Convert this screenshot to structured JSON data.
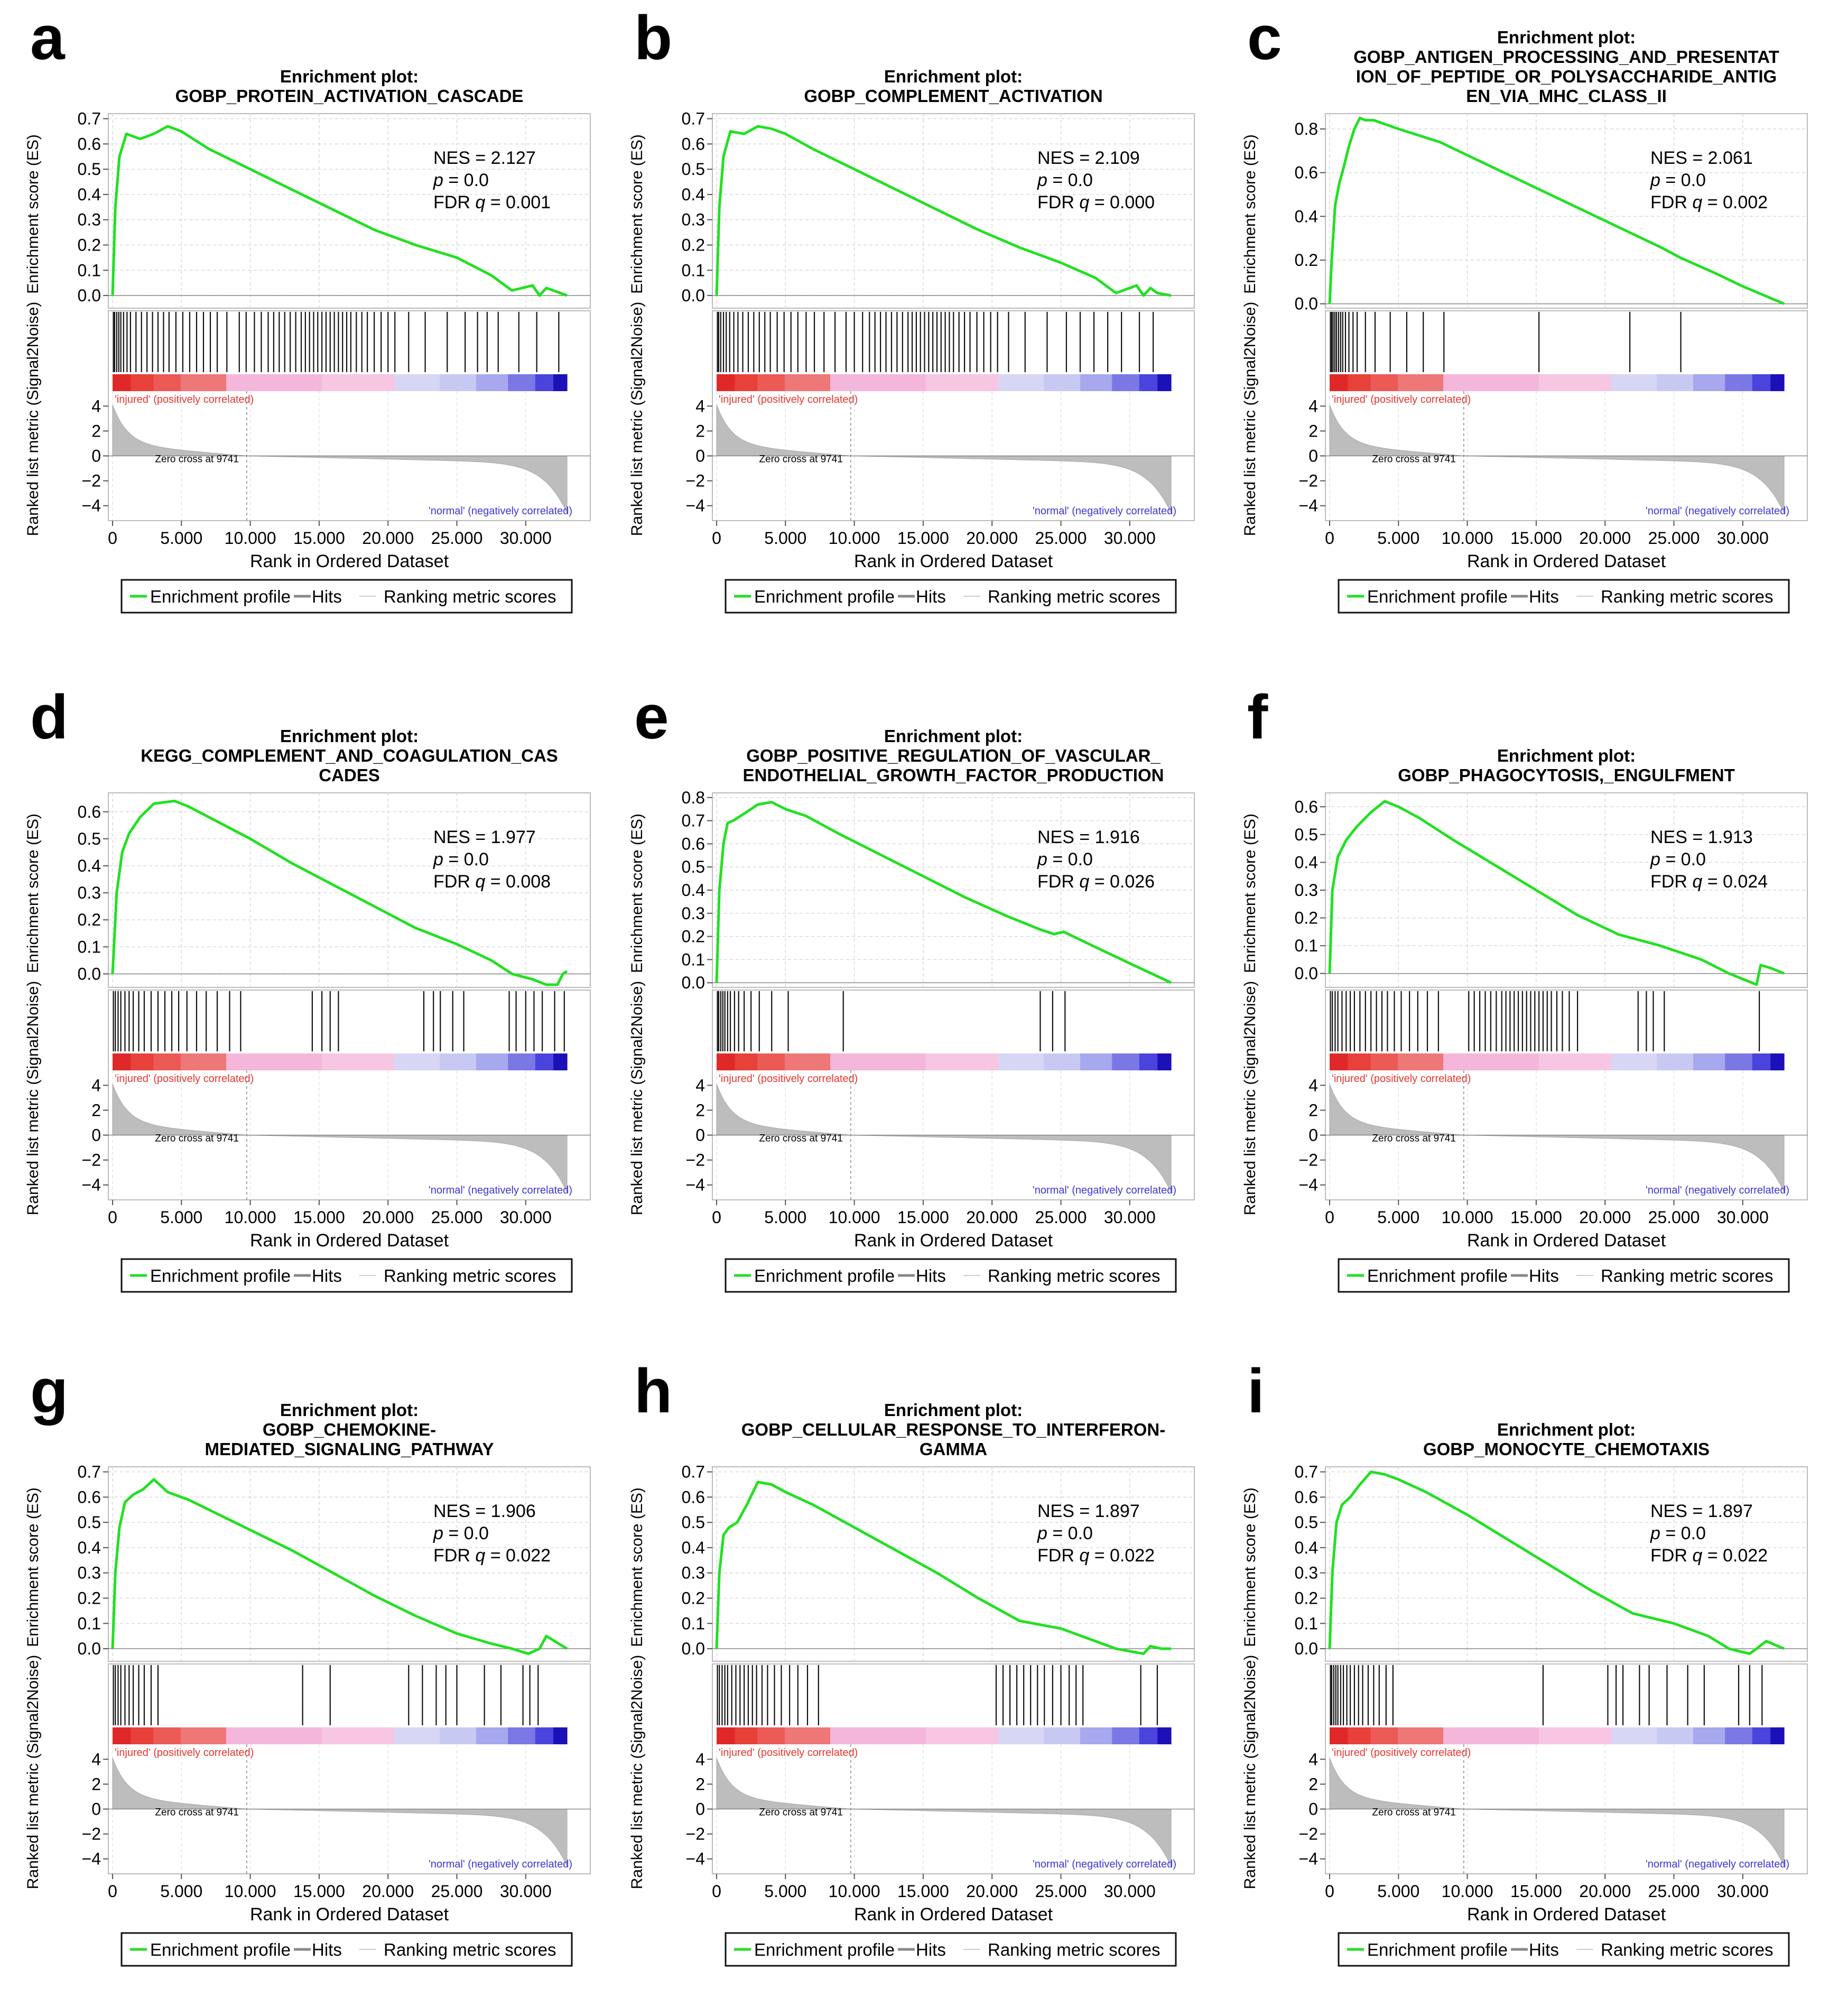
{
  "figure": {
    "common": {
      "plot_heading": "Enrichment plot:",
      "es_ylabel": "Enrichment score (ES)",
      "rank_ylabel": "Ranked list metric (Signal2Noise)",
      "xlabel": "Rank in Ordered Dataset",
      "x_ticks": [
        "0",
        "5.000",
        "10.000",
        "15.000",
        "20.000",
        "25.000",
        "30.000"
      ],
      "rank_ticks": [
        "4",
        "2",
        "0",
        "−2",
        "−4"
      ],
      "pos_label": "'injured' (positively correlated)",
      "neg_label": "'normal' (negatively correlated)",
      "zero_cross_label": "Zero cross at 9741",
      "legend": {
        "profile": "Enrichment profile",
        "hits": "Hits",
        "ranking": "Ranking metric scores"
      },
      "nes_label": "NES = ",
      "p_label": "p",
      "p_suffix": " = 0.0",
      "fdr_label": "FDR ",
      "q_label": "q",
      "colors": {
        "curve": "#22e022",
        "positive": "#e8352f",
        "pink": "#f4b6da",
        "lavender": "#cfd0f3",
        "negative": "#3b35d8",
        "metric": "#bdbdbd"
      }
    },
    "panels": [
      {
        "letter": "a",
        "title": [
          "GOBP_PROTEIN_ACTIVATION_CASCADE"
        ],
        "nes": "2.127",
        "fdr": " = 0.001"
      },
      {
        "letter": "b",
        "title": [
          "GOBP_COMPLEMENT_ACTIVATION"
        ],
        "nes": "2.109",
        "fdr": " = 0.000"
      },
      {
        "letter": "c",
        "title": [
          "GOBP_ANTIGEN_PROCESSING_AND_PRESENTAT",
          "ION_OF_PEPTIDE_OR_POLYSACCHARIDE_ANTIG",
          "EN_VIA_MHC_CLASS_II"
        ],
        "nes": "2.061",
        "fdr": " = 0.002"
      },
      {
        "letter": "d",
        "title": [
          "KEGG_COMPLEMENT_AND_COAGULATION_CAS",
          "CADES"
        ],
        "nes": "1.977",
        "fdr": " = 0.008"
      },
      {
        "letter": "e",
        "title": [
          "GOBP_POSITIVE_REGULATION_OF_VASCULAR_",
          "ENDOTHELIAL_GROWTH_FACTOR_PRODUCTION"
        ],
        "nes": "1.916",
        "fdr": " = 0.026"
      },
      {
        "letter": "f",
        "title": [
          "GOBP_PHAGOCYTOSIS,_ENGULFMENT"
        ],
        "nes": "1.913",
        "fdr": " = 0.024"
      },
      {
        "letter": "g",
        "title": [
          "GOBP_CHEMOKINE-",
          "MEDIATED_SIGNALING_PATHWAY"
        ],
        "nes": "1.906",
        "fdr": " = 0.022"
      },
      {
        "letter": "h",
        "title": [
          "GOBP_CELLULAR_RESPONSE_TO_INTERFERON-",
          "GAMMA"
        ],
        "nes": "1.897",
        "fdr": " = 0.022"
      },
      {
        "letter": "i",
        "title": [
          "GOBP_MONOCYTE_CHEMOTAXIS"
        ],
        "nes": "1.897",
        "fdr": " = 0.022"
      }
    ]
  },
  "chart_data": [
    {
      "type": "line",
      "panel": "a",
      "title": "Enrichment plot: GOBP_PROTEIN_ACTIVATION_CASCADE",
      "xlabel": "Rank in Ordered Dataset",
      "ylabel": "Enrichment score (ES)",
      "xlim": [
        0,
        33000
      ],
      "ylim": [
        -0.05,
        0.72
      ],
      "y_ticks": [
        "0.7",
        "0.6",
        "0.5",
        "0.4",
        "0.3",
        "0.2",
        "0.1",
        "0.0"
      ],
      "x": [
        0,
        200,
        500,
        1000,
        2000,
        3000,
        4000,
        5000,
        7000,
        10000,
        13000,
        16000,
        19000,
        22000,
        25000,
        27500,
        29000,
        30500,
        31000,
        31500,
        32000,
        33000
      ],
      "es": [
        0,
        0.35,
        0.55,
        0.64,
        0.62,
        0.64,
        0.67,
        0.65,
        0.58,
        0.5,
        0.42,
        0.34,
        0.26,
        0.2,
        0.15,
        0.08,
        0.02,
        0.04,
        0.0,
        0.03,
        0.02,
        0.0
      ],
      "hits": [
        60,
        150,
        300,
        450,
        600,
        800,
        1050,
        1300,
        1700,
        2100,
        2500,
        2900,
        3300,
        3700,
        4100,
        4600,
        5100,
        5600,
        6100,
        6600,
        7100,
        7600,
        8300,
        9200,
        9700,
        10300,
        10800,
        11300,
        11700,
        12100,
        12500,
        12900,
        13300,
        13700,
        14000,
        14300,
        14600,
        14900,
        15200,
        15500,
        15800,
        16100,
        16400,
        16700,
        17000,
        17300,
        17700,
        18100,
        18500,
        19000,
        19500,
        20000,
        20500,
        21500,
        22700,
        24300,
        25600,
        26500,
        27200,
        28000,
        29500,
        30800,
        32400
      ],
      "nes": 2.127,
      "p": 0.0,
      "fdr_q": 0.001,
      "zero_cross": 9741
    },
    {
      "type": "line",
      "panel": "b",
      "title": "Enrichment plot: GOBP_COMPLEMENT_ACTIVATION",
      "xlabel": "Rank in Ordered Dataset",
      "ylabel": "Enrichment score (ES)",
      "xlim": [
        0,
        33000
      ],
      "ylim": [
        -0.05,
        0.72
      ],
      "y_ticks": [
        "0.7",
        "0.6",
        "0.5",
        "0.4",
        "0.3",
        "0.2",
        "0.1",
        "0.0"
      ],
      "x": [
        0,
        200,
        500,
        1000,
        2000,
        3000,
        4000,
        5000,
        7000,
        10000,
        13000,
        16000,
        19000,
        22000,
        25000,
        27500,
        29000,
        30500,
        31000,
        31500,
        32000,
        33000
      ],
      "es": [
        0,
        0.35,
        0.55,
        0.65,
        0.64,
        0.67,
        0.66,
        0.64,
        0.58,
        0.5,
        0.42,
        0.34,
        0.26,
        0.19,
        0.13,
        0.07,
        0.01,
        0.04,
        0.0,
        0.03,
        0.01,
        0.0
      ],
      "hits": [
        60,
        150,
        300,
        500,
        700,
        950,
        1250,
        1550,
        1900,
        2300,
        2700,
        3100,
        3500,
        3900,
        4400,
        4900,
        5400,
        5900,
        6500,
        7100,
        7800,
        8600,
        9400,
        10000,
        10600,
        11100,
        11500,
        11900,
        12300,
        12700,
        13100,
        13500,
        13900,
        14200,
        14500,
        14800,
        15100,
        15400,
        15700,
        16000,
        16300,
        16600,
        16900,
        17200,
        17600,
        18000,
        18400,
        18900,
        19400,
        19900,
        20400,
        21200,
        22400,
        24000,
        25400,
        26400,
        27400,
        28400,
        29400,
        30700,
        31700
      ],
      "nes": 2.109,
      "p": 0.0,
      "fdr_q": 0.0,
      "zero_cross": 9741
    },
    {
      "type": "line",
      "panel": "c",
      "title": "Enrichment plot: GOBP_ANTIGEN_PROCESSING_AND_PRESENTATION_OF_PEPTIDE_OR_POLYSACCHARIDE_ANTIGEN_VIA_MHC_CLASS_II",
      "xlabel": "Rank in Ordered Dataset",
      "ylabel": "Enrichment score (ES)",
      "xlim": [
        0,
        33000
      ],
      "ylim": [
        -0.02,
        0.87
      ],
      "y_ticks": [
        "0.8",
        "0.6",
        "0.4",
        "0.2",
        "0.0"
      ],
      "x": [
        0,
        150,
        400,
        700,
        1000,
        1400,
        1800,
        2200,
        2600,
        3200,
        5000,
        8000,
        12000,
        16000,
        20000,
        24000,
        25500,
        28000,
        30000,
        33000
      ],
      "es": [
        0,
        0.2,
        0.45,
        0.55,
        0.62,
        0.72,
        0.8,
        0.85,
        0.84,
        0.84,
        0.8,
        0.74,
        0.62,
        0.5,
        0.38,
        0.26,
        0.21,
        0.14,
        0.08,
        0.0
      ],
      "hits": [
        60,
        150,
        250,
        380,
        500,
        650,
        800,
        950,
        1150,
        1400,
        1700,
        2000,
        2600,
        3300,
        4400,
        5600,
        6800,
        8300,
        15200,
        21800,
        25500
      ],
      "nes": 2.061,
      "p": 0.0,
      "fdr_q": 0.002,
      "zero_cross": 9741
    },
    {
      "type": "line",
      "panel": "d",
      "title": "Enrichment plot: KEGG_COMPLEMENT_AND_COAGULATION_CASCADES",
      "xlabel": "Rank in Ordered Dataset",
      "ylabel": "Enrichment score (ES)",
      "xlim": [
        0,
        33000
      ],
      "ylim": [
        -0.05,
        0.67
      ],
      "y_ticks": [
        "0.6",
        "0.5",
        "0.4",
        "0.3",
        "0.2",
        "0.1",
        "0.0"
      ],
      "x": [
        0,
        300,
        700,
        1200,
        2000,
        3000,
        4500,
        5500,
        7000,
        10000,
        13000,
        16000,
        19000,
        22000,
        25000,
        27500,
        29000,
        30500,
        31500,
        32300,
        32700,
        33000
      ],
      "es": [
        0,
        0.3,
        0.45,
        0.52,
        0.58,
        0.63,
        0.64,
        0.62,
        0.58,
        0.5,
        0.41,
        0.33,
        0.25,
        0.17,
        0.11,
        0.05,
        0.0,
        -0.02,
        -0.04,
        -0.04,
        0.0,
        0.01
      ],
      "hits": [
        60,
        200,
        400,
        600,
        900,
        1200,
        1500,
        1900,
        2300,
        2800,
        3300,
        3800,
        4300,
        4800,
        5400,
        6100,
        6800,
        7600,
        8500,
        9300,
        14500,
        15200,
        15800,
        16400,
        22600,
        23300,
        23800,
        24700,
        25500,
        28800,
        29300,
        30000,
        30600,
        31200,
        32100,
        32800
      ],
      "nes": 1.977,
      "p": 0.0,
      "fdr_q": 0.008,
      "zero_cross": 9741
    },
    {
      "type": "line",
      "panel": "e",
      "title": "Enrichment plot: GOBP_POSITIVE_REGULATION_OF_VASCULAR_ENDOTHELIAL_GROWTH_FACTOR_PRODUCTION",
      "xlabel": "Rank in Ordered Dataset",
      "ylabel": "Enrichment score (ES)",
      "xlim": [
        0,
        33000
      ],
      "ylim": [
        -0.02,
        0.82
      ],
      "y_ticks": [
        "0.8",
        "0.7",
        "0.6",
        "0.5",
        "0.4",
        "0.3",
        "0.2",
        "0.1",
        "0.0"
      ],
      "x": [
        0,
        200,
        500,
        800,
        1200,
        2000,
        3000,
        4000,
        5000,
        6500,
        9000,
        12000,
        15000,
        18000,
        21000,
        23500,
        24500,
        25200,
        28000,
        30500,
        33000
      ],
      "es": [
        0,
        0.4,
        0.6,
        0.69,
        0.7,
        0.73,
        0.77,
        0.78,
        0.75,
        0.72,
        0.64,
        0.55,
        0.46,
        0.37,
        0.29,
        0.23,
        0.21,
        0.22,
        0.14,
        0.07,
        0.0
      ],
      "hits": [
        60,
        150,
        300,
        450,
        600,
        800,
        1000,
        1300,
        1600,
        2000,
        2500,
        3100,
        4000,
        5200,
        9200,
        23500,
        24400,
        25300
      ],
      "nes": 1.916,
      "p": 0.0,
      "fdr_q": 0.026,
      "zero_cross": 9741
    },
    {
      "type": "line",
      "panel": "f",
      "title": "Enrichment plot: GOBP_PHAGOCYTOSIS,_ENGULFMENT",
      "xlabel": "Rank in Ordered Dataset",
      "ylabel": "Enrichment score (ES)",
      "xlim": [
        0,
        33000
      ],
      "ylim": [
        -0.05,
        0.65
      ],
      "y_ticks": [
        "0.6",
        "0.5",
        "0.4",
        "0.3",
        "0.2",
        "0.1",
        "0.0"
      ],
      "x": [
        0,
        200,
        600,
        1200,
        2000,
        3000,
        4000,
        5000,
        6500,
        9000,
        12000,
        15000,
        18000,
        21000,
        24000,
        27000,
        29000,
        31000,
        31300,
        32000,
        33000
      ],
      "es": [
        0,
        0.3,
        0.42,
        0.48,
        0.53,
        0.58,
        0.62,
        0.6,
        0.56,
        0.48,
        0.39,
        0.3,
        0.21,
        0.14,
        0.1,
        0.05,
        0.0,
        -0.04,
        0.03,
        0.02,
        0.0
      ],
      "hits": [
        60,
        200,
        400,
        600,
        900,
        1200,
        1500,
        1800,
        2200,
        2600,
        3000,
        3400,
        3800,
        4200,
        4700,
        5200,
        5800,
        6400,
        7100,
        7900,
        10100,
        10500,
        10900,
        11300,
        11700,
        12100,
        12500,
        12800,
        13100,
        13400,
        13700,
        14000,
        14300,
        14600,
        14900,
        15200,
        15500,
        15800,
        16100,
        16500,
        16900,
        17400,
        18000,
        22400,
        23000,
        23500,
        24300,
        31200
      ],
      "nes": 1.913,
      "p": 0.0,
      "fdr_q": 0.024,
      "zero_cross": 9741
    },
    {
      "type": "line",
      "panel": "g",
      "title": "Enrichment plot: GOBP_CHEMOKINE-MEDIATED_SIGNALING_PATHWAY",
      "xlabel": "Rank in Ordered Dataset",
      "ylabel": "Enrichment score (ES)",
      "xlim": [
        0,
        33000
      ],
      "ylim": [
        -0.05,
        0.72
      ],
      "y_ticks": [
        "0.7",
        "0.6",
        "0.5",
        "0.4",
        "0.3",
        "0.2",
        "0.1",
        "0.0"
      ],
      "x": [
        0,
        200,
        500,
        900,
        1500,
        2200,
        3000,
        4000,
        5500,
        7000,
        10000,
        13000,
        16000,
        19000,
        22000,
        25000,
        27500,
        29000,
        30200,
        31000,
        31500,
        33000
      ],
      "es": [
        0,
        0.3,
        0.48,
        0.58,
        0.61,
        0.63,
        0.67,
        0.62,
        0.59,
        0.55,
        0.47,
        0.39,
        0.3,
        0.21,
        0.13,
        0.06,
        0.02,
        0.0,
        -0.02,
        0.0,
        0.05,
        0.0
      ],
      "hits": [
        60,
        200,
        400,
        600,
        900,
        1200,
        1500,
        1900,
        2300,
        2800,
        3300,
        13800,
        15800,
        21500,
        22500,
        23500,
        24200,
        25000,
        27000,
        28200,
        29800,
        30300,
        30900
      ],
      "nes": 1.906,
      "p": 0.0,
      "fdr_q": 0.022,
      "zero_cross": 9741
    },
    {
      "type": "line",
      "panel": "h",
      "title": "Enrichment plot: GOBP_CELLULAR_RESPONSE_TO_INTERFERON-GAMMA",
      "xlabel": "Rank in Ordered Dataset",
      "ylabel": "Enrichment score (ES)",
      "xlim": [
        0,
        33000
      ],
      "ylim": [
        -0.05,
        0.72
      ],
      "y_ticks": [
        "0.7",
        "0.6",
        "0.5",
        "0.4",
        "0.3",
        "0.2",
        "0.1",
        "0.0"
      ],
      "x": [
        0,
        200,
        500,
        900,
        1500,
        2200,
        3000,
        4000,
        5000,
        7000,
        10000,
        13000,
        16000,
        19000,
        22000,
        25000,
        27000,
        29000,
        31000,
        31500,
        32300,
        33000
      ],
      "es": [
        0,
        0.3,
        0.45,
        0.48,
        0.5,
        0.57,
        0.66,
        0.65,
        0.62,
        0.57,
        0.48,
        0.39,
        0.3,
        0.2,
        0.11,
        0.08,
        0.04,
        0.0,
        -0.02,
        0.01,
        0.0,
        0.0
      ],
      "hits": [
        60,
        200,
        400,
        600,
        800,
        1100,
        1400,
        1700,
        2000,
        2300,
        2600,
        2900,
        3300,
        3700,
        4200,
        4700,
        5300,
        5900,
        6600,
        7400,
        20300,
        20800,
        21300,
        21800,
        22300,
        22800,
        23300,
        23800,
        24400,
        25000,
        25600,
        26100,
        26600,
        30800,
        32000
      ],
      "nes": 1.897,
      "p": 0.0,
      "fdr_q": 0.022,
      "zero_cross": 9741
    },
    {
      "type": "line",
      "panel": "i",
      "title": "Enrichment plot: GOBP_MONOCYTE_CHEMOTAXIS",
      "xlabel": "Rank in Ordered Dataset",
      "ylabel": "Enrichment score (ES)",
      "xlim": [
        0,
        33000
      ],
      "ylim": [
        -0.05,
        0.72
      ],
      "y_ticks": [
        "0.7",
        "0.6",
        "0.5",
        "0.4",
        "0.3",
        "0.2",
        "0.1",
        "0.0"
      ],
      "x": [
        0,
        200,
        500,
        900,
        1500,
        2200,
        3000,
        4000,
        5000,
        7000,
        10000,
        13000,
        16000,
        19000,
        22000,
        25000,
        27500,
        29000,
        30500,
        31000,
        31700,
        33000
      ],
      "es": [
        0,
        0.3,
        0.5,
        0.57,
        0.6,
        0.65,
        0.7,
        0.69,
        0.67,
        0.62,
        0.53,
        0.43,
        0.33,
        0.23,
        0.14,
        0.1,
        0.05,
        0.0,
        -0.02,
        0.0,
        0.03,
        0.0
      ],
      "hits": [
        60,
        150,
        300,
        450,
        600,
        800,
        1000,
        1250,
        1500,
        1800,
        2100,
        2400,
        2800,
        3200,
        3600,
        4100,
        4600,
        15500,
        20200,
        20800,
        21300,
        22500,
        23200,
        24500,
        26000,
        27200,
        29700,
        30500,
        31400
      ],
      "nes": 1.897,
      "p": 0.0,
      "fdr_q": 0.022,
      "zero_cross": 9741
    }
  ]
}
